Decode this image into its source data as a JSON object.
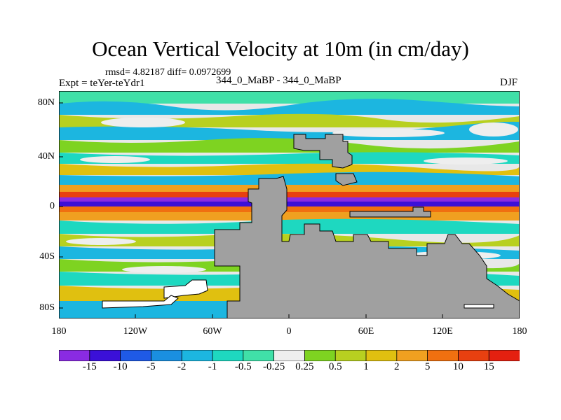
{
  "title": "Ocean Vertical Velocity at 10m (in cm/day)",
  "stats": "rmsd= 4.82187 diff= 0.0972699",
  "expt": "Expt = teYer-teYdr1",
  "cases": "344_0_MaBP - 344_0_MaBP",
  "season": "DJF",
  "map": {
    "lat_ticks": [
      "80N",
      "40N",
      "0",
      "40S",
      "80S"
    ],
    "lon_ticks": [
      "180",
      "120W",
      "60W",
      "0",
      "60E",
      "120E",
      "180"
    ],
    "land_color": "#a0a0a0",
    "ocean_bg": "#e8e8e8"
  },
  "colorbar": {
    "labels": [
      "-15",
      "-10",
      "-5",
      "-2",
      "-1",
      "-0.5",
      "-0.25",
      "0.25",
      "0.5",
      "1",
      "2",
      "5",
      "10",
      "15"
    ],
    "colors": [
      "#8a2be2",
      "#3b10d8",
      "#1f5ae6",
      "#1a8fe0",
      "#1cb6e0",
      "#1ed8c0",
      "#40e0a8",
      "#eeeeee",
      "#7ed321",
      "#b8d020",
      "#e0c010",
      "#f0a020",
      "#f07010",
      "#e84010",
      "#e42010"
    ]
  }
}
